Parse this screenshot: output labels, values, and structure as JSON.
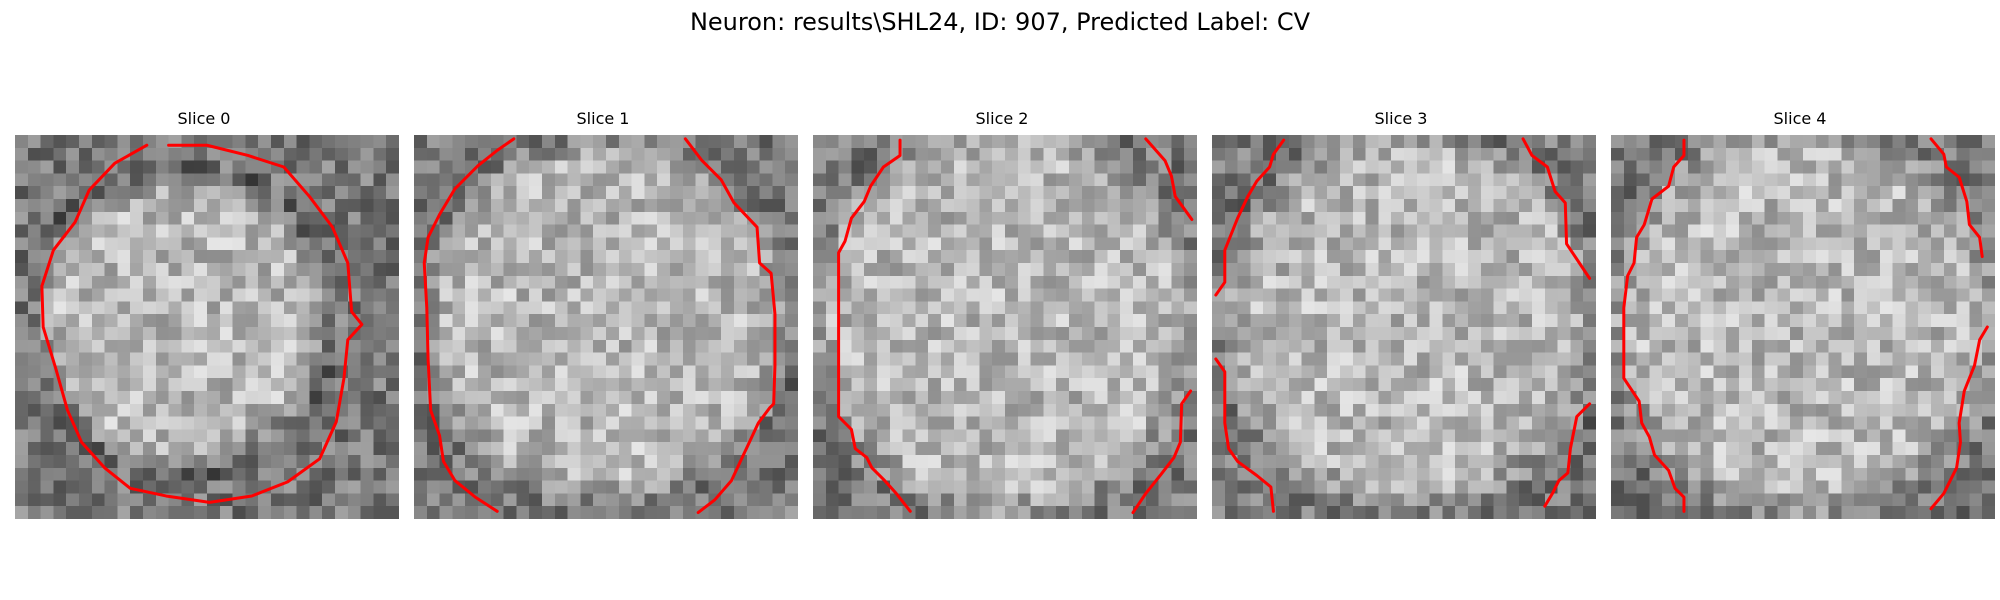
{
  "figure": {
    "title": "Neuron: results\\SHL24, ID: 907, Predicted Label: CV",
    "contour_color": "#ff0000",
    "colormap": "grayscale"
  },
  "slices": [
    {
      "label": "Slice 0"
    },
    {
      "label": "Slice 1"
    },
    {
      "label": "Slice 2"
    },
    {
      "label": "Slice 3"
    },
    {
      "label": "Slice 4"
    }
  ]
}
